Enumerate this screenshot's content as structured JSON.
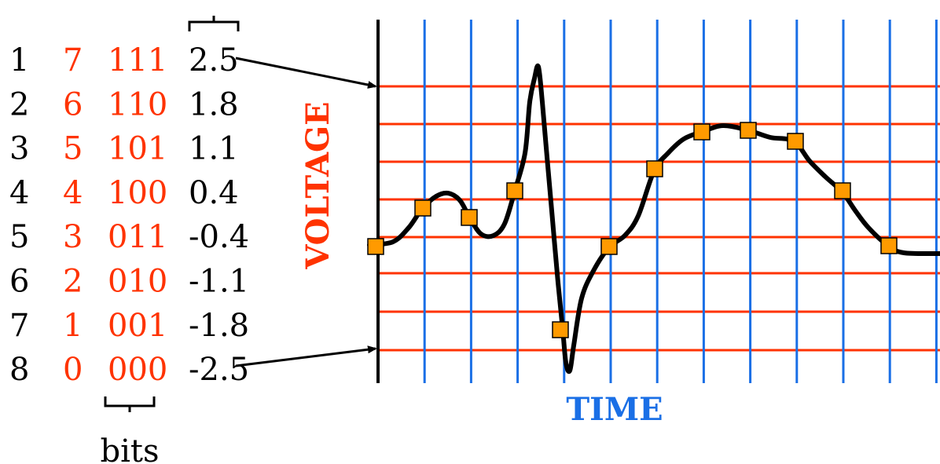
{
  "table": {
    "rows": [
      {
        "index": "1",
        "level": "7",
        "bits": "111",
        "voltage": "2.5"
      },
      {
        "index": "2",
        "level": "6",
        "bits": "110",
        "voltage": "1.8"
      },
      {
        "index": "3",
        "level": "5",
        "bits": "101",
        "voltage": "1.1"
      },
      {
        "index": "4",
        "level": "4",
        "bits": "100",
        "voltage": "0.4"
      },
      {
        "index": "5",
        "level": "3",
        "bits": "011",
        "voltage": "-0.4"
      },
      {
        "index": "6",
        "level": "2",
        "bits": "010",
        "voltage": "-1.1"
      },
      {
        "index": "7",
        "level": "1",
        "bits": "001",
        "voltage": "-1.8"
      },
      {
        "index": "8",
        "level": "0",
        "bits": "000",
        "voltage": "-2.5"
      }
    ],
    "bits_label": "bits"
  },
  "graph": {
    "y_label": "VOLTAGE",
    "x_label": "TIME"
  },
  "colors": {
    "grid_horizontal": "#ff3300",
    "grid_vertical": "#1a6fe6",
    "waveform": "#000000",
    "sample_marker": "#ff9a00",
    "level_text": "#ff3300",
    "time_text": "#1a6fe6",
    "voltage_text": "#ff3300",
    "value_text": "#000000"
  }
}
